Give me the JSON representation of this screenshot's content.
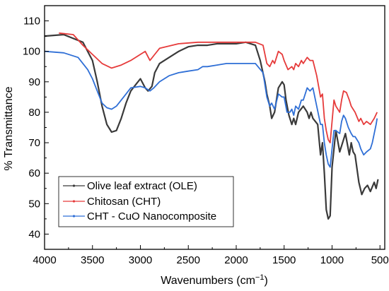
{
  "chart_data": {
    "type": "line",
    "title": "",
    "xlabel": "Wavenumbers (cm",
    "xlabel_sup": "−1",
    "xlabel_close": ")",
    "ylabel": "% Transmittance",
    "xlim": [
      4000,
      450
    ],
    "ylim": [
      35,
      115
    ],
    "x_reversed": true,
    "xticks": [
      4000,
      3500,
      3000,
      2500,
      2000,
      1500,
      1000,
      500
    ],
    "yticks": [
      40,
      50,
      60,
      70,
      80,
      90,
      100,
      110
    ],
    "xtick_labels": [
      "4000",
      "3500",
      "3000",
      "2500",
      "2000",
      "1500",
      "1000",
      "500"
    ],
    "ytick_labels": [
      "40",
      "50",
      "60",
      "70",
      "80",
      "90",
      "100",
      "110"
    ],
    "grid": false,
    "legend_position": "bottom-left",
    "series": [
      {
        "name": "Olive leaf extract (OLE)",
        "color": "#3a3a3a",
        "points": [
          [
            4000,
            105
          ],
          [
            3800,
            105.5
          ],
          [
            3600,
            103
          ],
          [
            3500,
            97
          ],
          [
            3450,
            90
          ],
          [
            3400,
            82
          ],
          [
            3350,
            76
          ],
          [
            3300,
            73.5
          ],
          [
            3250,
            74
          ],
          [
            3200,
            78
          ],
          [
            3150,
            83
          ],
          [
            3100,
            87
          ],
          [
            3050,
            89
          ],
          [
            3000,
            91
          ],
          [
            2950,
            88
          ],
          [
            2920,
            87
          ],
          [
            2880,
            88.5
          ],
          [
            2850,
            93
          ],
          [
            2800,
            96
          ],
          [
            2700,
            98
          ],
          [
            2600,
            100
          ],
          [
            2500,
            101.5
          ],
          [
            2400,
            102
          ],
          [
            2300,
            102
          ],
          [
            2200,
            102.5
          ],
          [
            2100,
            102.5
          ],
          [
            2000,
            102.5
          ],
          [
            1900,
            103
          ],
          [
            1800,
            102
          ],
          [
            1750,
            97
          ],
          [
            1700,
            90
          ],
          [
            1680,
            86
          ],
          [
            1650,
            82
          ],
          [
            1630,
            78
          ],
          [
            1600,
            80
          ],
          [
            1560,
            88
          ],
          [
            1520,
            90
          ],
          [
            1500,
            89
          ],
          [
            1480,
            84
          ],
          [
            1450,
            79
          ],
          [
            1420,
            76
          ],
          [
            1400,
            78
          ],
          [
            1380,
            76
          ],
          [
            1350,
            80
          ],
          [
            1300,
            82
          ],
          [
            1260,
            80
          ],
          [
            1240,
            78
          ],
          [
            1220,
            80
          ],
          [
            1200,
            78
          ],
          [
            1150,
            76
          ],
          [
            1120,
            66
          ],
          [
            1100,
            70
          ],
          [
            1080,
            60
          ],
          [
            1060,
            48
          ],
          [
            1040,
            45
          ],
          [
            1020,
            46
          ],
          [
            1000,
            62
          ],
          [
            980,
            68
          ],
          [
            960,
            74
          ],
          [
            920,
            67
          ],
          [
            880,
            71
          ],
          [
            860,
            73
          ],
          [
            820,
            66
          ],
          [
            800,
            70
          ],
          [
            780,
            67
          ],
          [
            760,
            66
          ],
          [
            720,
            57
          ],
          [
            690,
            53
          ],
          [
            660,
            55
          ],
          [
            630,
            56
          ],
          [
            600,
            54
          ],
          [
            560,
            57
          ],
          [
            540,
            55
          ],
          [
            520,
            58
          ]
        ]
      },
      {
        "name": "Chitosan (CHT)",
        "color": "#e63b3b",
        "points": [
          [
            3850,
            106
          ],
          [
            3700,
            105.5
          ],
          [
            3600,
            102
          ],
          [
            3500,
            99
          ],
          [
            3400,
            96
          ],
          [
            3300,
            94.5
          ],
          [
            3200,
            95.5
          ],
          [
            3100,
            97
          ],
          [
            3000,
            99
          ],
          [
            2950,
            100
          ],
          [
            2900,
            97
          ],
          [
            2850,
            99
          ],
          [
            2800,
            101
          ],
          [
            2600,
            102.5
          ],
          [
            2400,
            103
          ],
          [
            2200,
            103
          ],
          [
            2000,
            103
          ],
          [
            1900,
            103
          ],
          [
            1800,
            103
          ],
          [
            1720,
            102
          ],
          [
            1680,
            96
          ],
          [
            1650,
            95
          ],
          [
            1620,
            97
          ],
          [
            1600,
            96
          ],
          [
            1560,
            100
          ],
          [
            1520,
            99
          ],
          [
            1500,
            97
          ],
          [
            1460,
            94
          ],
          [
            1420,
            95
          ],
          [
            1400,
            94
          ],
          [
            1380,
            96
          ],
          [
            1350,
            95
          ],
          [
            1320,
            97
          ],
          [
            1300,
            96
          ],
          [
            1260,
            98
          ],
          [
            1230,
            97
          ],
          [
            1200,
            97
          ],
          [
            1160,
            92
          ],
          [
            1120,
            85
          ],
          [
            1100,
            86
          ],
          [
            1080,
            78
          ],
          [
            1060,
            74
          ],
          [
            1040,
            71
          ],
          [
            1020,
            70
          ],
          [
            1000,
            77
          ],
          [
            980,
            84
          ],
          [
            960,
            82
          ],
          [
            920,
            80
          ],
          [
            900,
            84
          ],
          [
            880,
            87
          ],
          [
            850,
            86.5
          ],
          [
            820,
            84
          ],
          [
            800,
            82
          ],
          [
            780,
            81
          ],
          [
            760,
            80
          ],
          [
            720,
            77
          ],
          [
            700,
            78
          ],
          [
            670,
            76
          ],
          [
            640,
            77
          ],
          [
            600,
            76
          ],
          [
            560,
            78
          ],
          [
            530,
            80
          ]
        ]
      },
      {
        "name": "CHT - CuO Nanocomposite",
        "color": "#2f6fd6",
        "points": [
          [
            4000,
            100
          ],
          [
            3800,
            99.5
          ],
          [
            3650,
            98
          ],
          [
            3550,
            94
          ],
          [
            3500,
            91
          ],
          [
            3450,
            87
          ],
          [
            3400,
            83
          ],
          [
            3350,
            81.5
          ],
          [
            3300,
            81
          ],
          [
            3250,
            82
          ],
          [
            3200,
            84
          ],
          [
            3150,
            86
          ],
          [
            3100,
            88
          ],
          [
            3000,
            88.5
          ],
          [
            2950,
            88
          ],
          [
            2900,
            87
          ],
          [
            2860,
            88
          ],
          [
            2800,
            90
          ],
          [
            2700,
            92
          ],
          [
            2600,
            93
          ],
          [
            2500,
            93.5
          ],
          [
            2400,
            94
          ],
          [
            2350,
            95
          ],
          [
            2300,
            95
          ],
          [
            2200,
            95.5
          ],
          [
            2100,
            96
          ],
          [
            2000,
            96
          ],
          [
            1900,
            96
          ],
          [
            1800,
            96
          ],
          [
            1720,
            93
          ],
          [
            1680,
            85
          ],
          [
            1650,
            82
          ],
          [
            1630,
            83
          ],
          [
            1600,
            81
          ],
          [
            1560,
            86
          ],
          [
            1520,
            85
          ],
          [
            1500,
            85
          ],
          [
            1470,
            80
          ],
          [
            1440,
            80
          ],
          [
            1420,
            81
          ],
          [
            1400,
            79
          ],
          [
            1380,
            82
          ],
          [
            1350,
            81
          ],
          [
            1320,
            84
          ],
          [
            1300,
            84
          ],
          [
            1260,
            88
          ],
          [
            1230,
            87
          ],
          [
            1200,
            88
          ],
          [
            1160,
            82
          ],
          [
            1120,
            76
          ],
          [
            1100,
            76
          ],
          [
            1080,
            70
          ],
          [
            1060,
            66
          ],
          [
            1040,
            63
          ],
          [
            1020,
            62
          ],
          [
            1000,
            68
          ],
          [
            980,
            74
          ],
          [
            960,
            74
          ],
          [
            920,
            73
          ],
          [
            900,
            77
          ],
          [
            880,
            79
          ],
          [
            860,
            78
          ],
          [
            830,
            75
          ],
          [
            800,
            73
          ],
          [
            780,
            72
          ],
          [
            760,
            72
          ],
          [
            720,
            70
          ],
          [
            700,
            68
          ],
          [
            670,
            66
          ],
          [
            640,
            67
          ],
          [
            600,
            68
          ],
          [
            580,
            70
          ],
          [
            560,
            73
          ],
          [
            540,
            76
          ],
          [
            530,
            78
          ]
        ]
      }
    ]
  }
}
